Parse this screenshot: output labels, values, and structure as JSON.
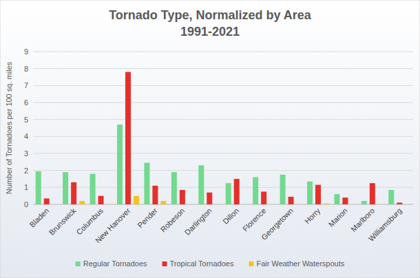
{
  "chart_data": {
    "type": "bar",
    "title": "Tornado Type, Normalized by Area",
    "subtitle": "1991-2021",
    "y_label": "Number of Tornadoes per 100 sq. miles",
    "categories": [
      "Bladen",
      "Brunswick",
      "Columbus",
      "New Hanover",
      "Pender",
      "Robeson",
      "Darlington",
      "Dillon",
      "Florence",
      "Georgetown",
      "Horry",
      "Marion",
      "Marlboro",
      "Williamsburg"
    ],
    "series": [
      {
        "name": "Regular Tornadoes",
        "color": "#72d98e",
        "values": [
          1.95,
          1.9,
          1.8,
          4.7,
          2.45,
          1.9,
          2.3,
          1.25,
          1.6,
          1.75,
          1.35,
          0.6,
          0.2,
          0.85
        ]
      },
      {
        "name": "Tropical Tornadoes",
        "color": "#e5302a",
        "values": [
          0.35,
          1.3,
          0.5,
          7.8,
          1.1,
          0.85,
          0.7,
          1.5,
          0.75,
          0.45,
          1.15,
          0.4,
          1.25,
          0.1
        ]
      },
      {
        "name": "Fair Weather Waterspouts",
        "color": "#f5c31c",
        "values": [
          0,
          0.2,
          0,
          0.5,
          0.2,
          0,
          0,
          0,
          0,
          0,
          0.05,
          0,
          0,
          0
        ]
      }
    ],
    "ylim": [
      0,
      9
    ],
    "yticks": [
      0,
      1,
      2,
      3,
      4,
      5,
      6,
      7,
      8,
      9
    ],
    "grid": true,
    "legend": "bottom"
  }
}
